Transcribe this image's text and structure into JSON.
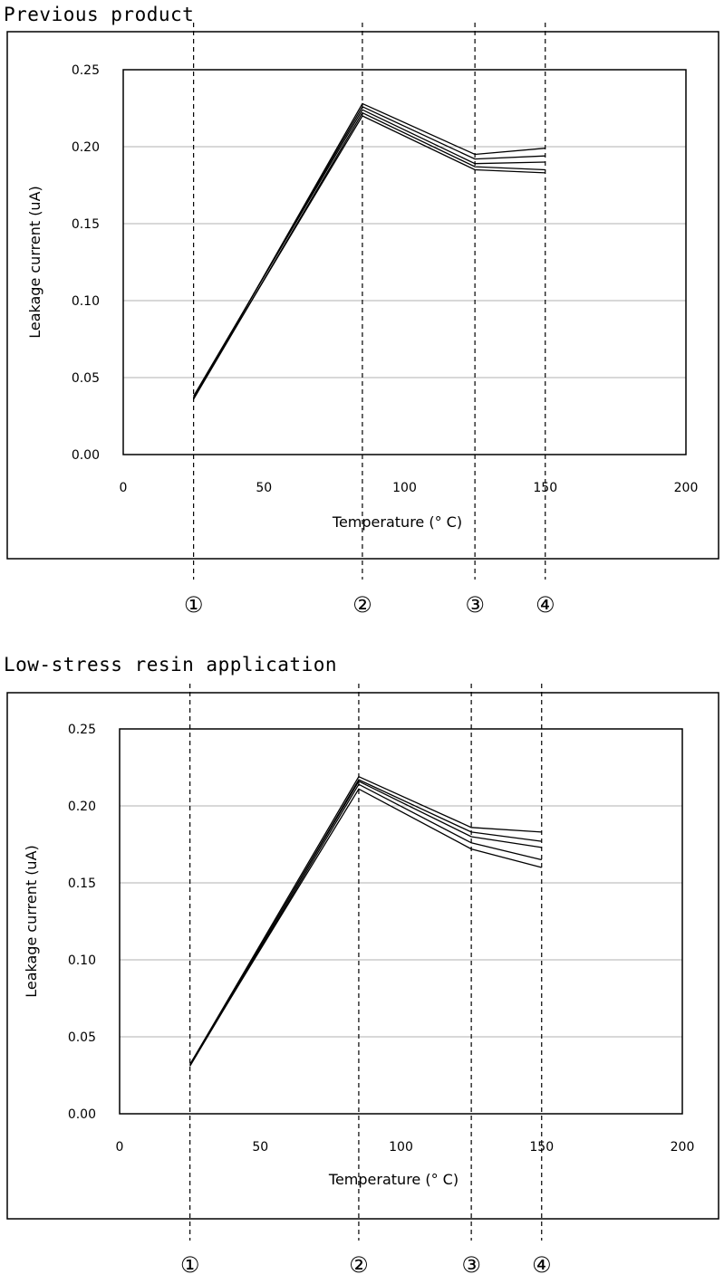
{
  "chart_data": [
    {
      "type": "line",
      "title": "Previous product",
      "xlabel": "Temperature (° C)",
      "ylabel": "Leakage current (uA)",
      "xlim": [
        0,
        200
      ],
      "ylim": [
        0,
        0.25
      ],
      "xticks": [
        "0",
        "50",
        "100",
        "150",
        "200"
      ],
      "yticks": [
        "0.00",
        "0.05",
        "0.10",
        "0.15",
        "0.20",
        "0.25"
      ],
      "grid": "horizontal",
      "x": [
        25,
        85,
        125,
        150
      ],
      "series": [
        {
          "values": [
            0.036,
            0.228,
            0.195,
            0.199
          ]
        },
        {
          "values": [
            0.037,
            0.226,
            0.192,
            0.194
          ]
        },
        {
          "values": [
            0.038,
            0.224,
            0.189,
            0.19
          ]
        },
        {
          "values": [
            0.036,
            0.222,
            0.187,
            0.185
          ]
        },
        {
          "values": [
            0.037,
            0.22,
            0.185,
            0.183
          ]
        }
      ],
      "markers": [
        {
          "x": 25,
          "label": "①"
        },
        {
          "x": 85,
          "label": "②"
        },
        {
          "x": 125,
          "label": "③"
        },
        {
          "x": 150,
          "label": "④"
        }
      ]
    },
    {
      "type": "line",
      "title": "Low-stress resin application",
      "xlabel": "Temperature (° C)",
      "ylabel": "Leakage current (uA)",
      "xlim": [
        0,
        200
      ],
      "ylim": [
        0,
        0.25
      ],
      "xticks": [
        "0",
        "50",
        "100",
        "150",
        "200"
      ],
      "yticks": [
        "0.00",
        "0.05",
        "0.10",
        "0.15",
        "0.20",
        "0.25"
      ],
      "grid": "horizontal",
      "x": [
        25,
        85,
        125,
        150
      ],
      "series": [
        {
          "values": [
            0.032,
            0.219,
            0.186,
            0.183
          ]
        },
        {
          "values": [
            0.031,
            0.217,
            0.183,
            0.177
          ]
        },
        {
          "values": [
            0.032,
            0.216,
            0.18,
            0.173
          ]
        },
        {
          "values": [
            0.031,
            0.214,
            0.176,
            0.165
          ]
        },
        {
          "values": [
            0.032,
            0.211,
            0.172,
            0.16
          ]
        }
      ],
      "markers": [
        {
          "x": 25,
          "label": "①"
        },
        {
          "x": 85,
          "label": "②"
        },
        {
          "x": 125,
          "label": "③"
        },
        {
          "x": 150,
          "label": "④"
        }
      ]
    }
  ]
}
